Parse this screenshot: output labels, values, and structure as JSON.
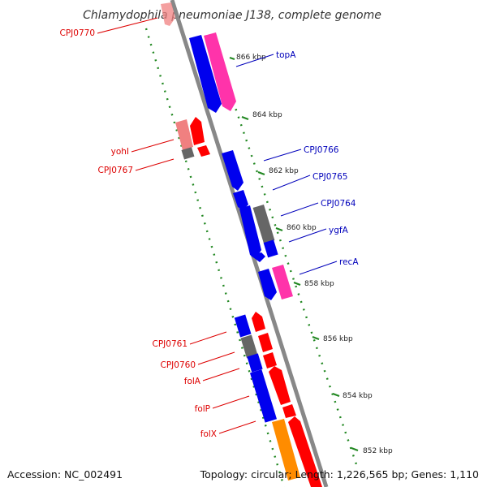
{
  "title": "Chlamydophila pneumoniae J138, complete genome",
  "footer": {
    "accession": "Accession: NC_002491",
    "summary": "Topology: circular; Length: 1,226,565 bp; Genes: 1,110"
  },
  "ticks": [
    "852 kbp",
    "854 kbp",
    "856 kbp",
    "858 kbp",
    "860 kbp",
    "862 kbp",
    "864 kbp",
    "866 kbp"
  ],
  "labels": {
    "right": [
      "topA",
      "CPJ0766",
      "CPJ0765",
      "CPJ0764",
      "ygfA",
      "recA"
    ],
    "left": [
      "CPJ0770",
      "yohI",
      "CPJ0767",
      "CPJ0761",
      "CPJ0760",
      "folA",
      "folP",
      "folX"
    ]
  },
  "colors": {
    "forward_label": "#0000bb",
    "reverse_label": "#dd0000",
    "blue_cds": "#0000ee",
    "pink_cds": "#ff33aa",
    "red_cds": "#ff0000",
    "salmon_cds": "#f08080",
    "grey_feature": "#666666",
    "orange_cds": "#ff8c00",
    "backbone": "#888888",
    "ruler": "#228822"
  }
}
